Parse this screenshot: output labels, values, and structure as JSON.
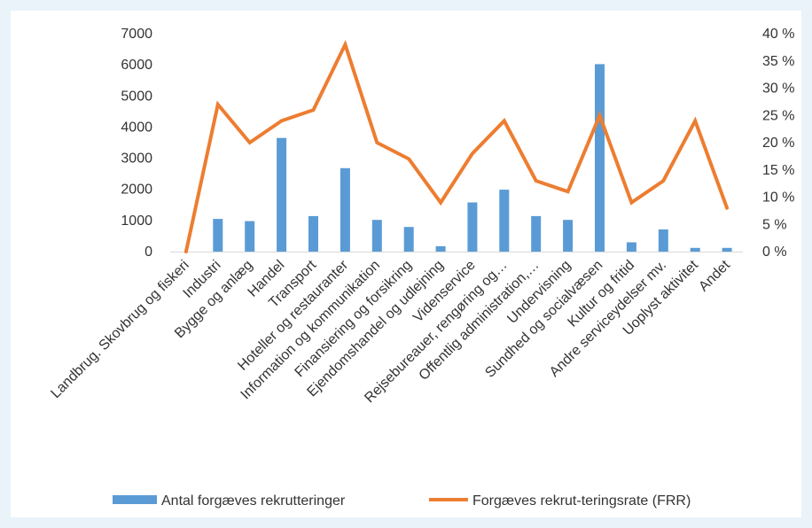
{
  "chart_data": {
    "type": "bar",
    "categories": [
      "Landbrug. Skovbrug og fiskeri",
      "Industri",
      "Bygge og anlæg",
      "Handel",
      "Transport",
      "Hoteller og restauranter",
      "Information og kommunikation",
      "Finansiering og forsikring",
      "Ejendomshandel og udlejning",
      "Videnservice",
      "Rejsebureauer, rengøring og…",
      "Offentlig administration,…",
      "Undervisning",
      "Sundhed og socialvæsen",
      "Kultur og fritid",
      "Andre serviceydelser mv.",
      "Uoplyst aktivitet",
      "Andet"
    ],
    "series": [
      {
        "name": "Antal forgæves rekrutteringer",
        "type": "bar",
        "axis": "left",
        "color": "#5b9bd5",
        "values": [
          0,
          1050,
          980,
          3650,
          1140,
          2680,
          1020,
          790,
          170,
          1580,
          1990,
          1140,
          1020,
          6020,
          300,
          710,
          120,
          120
        ]
      },
      {
        "name": "Forgæves rekrut-teringsrate (FRR)",
        "type": "line",
        "axis": "right",
        "color": "#ed7d31",
        "values": [
          0,
          27,
          20,
          24,
          26,
          38,
          20,
          17,
          9,
          18,
          24,
          13,
          11,
          25,
          9,
          13,
          24,
          8
        ]
      }
    ],
    "y_left": {
      "ylim": [
        0,
        7000
      ],
      "ticks": [
        "0",
        "1000",
        "2000",
        "3000",
        "4000",
        "5000",
        "6000",
        "7000"
      ]
    },
    "y_right": {
      "ylim": [
        0,
        40
      ],
      "ticks": [
        "0 %",
        "5 %",
        "10 %",
        "15 %",
        "20 %",
        "25 %",
        "30 %",
        "35 %",
        "40 %"
      ]
    },
    "grid": false,
    "legend_position": "bottom"
  }
}
